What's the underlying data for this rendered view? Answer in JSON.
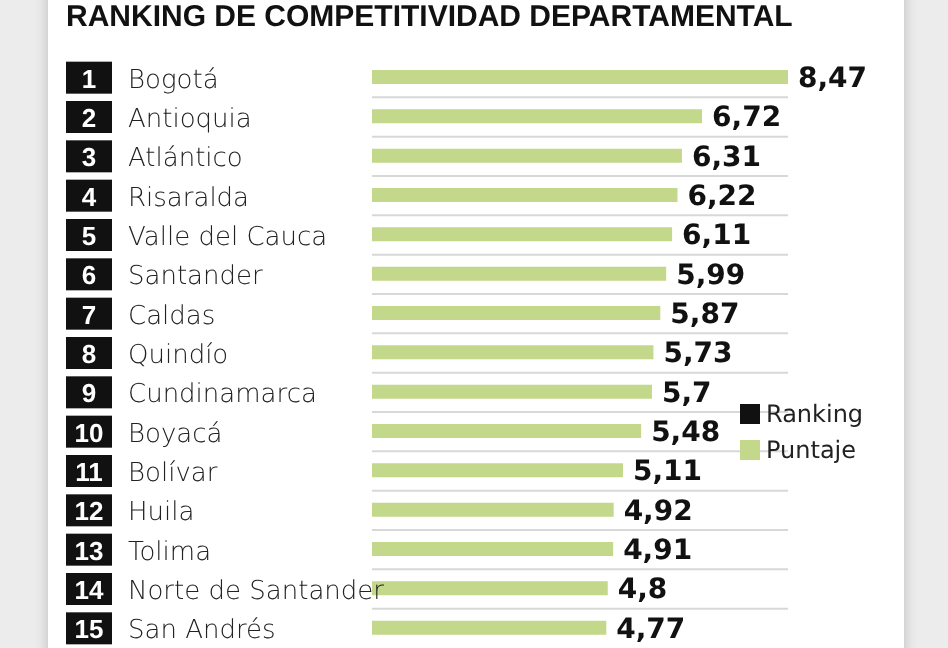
{
  "chart_data": {
    "type": "bar",
    "orientation": "horizontal",
    "title": "RANKING DE COMPETITIVIDAD DEPARTAMENTAL",
    "annotations": [
      "Ranking",
      "1",
      "2",
      "3",
      "4",
      "5",
      "6",
      "7",
      "8",
      "9",
      "10",
      "11",
      "12",
      "13",
      "14",
      "15"
    ],
    "categories": [
      "Bogotá",
      "Antioquia",
      "Atlántico",
      "Risaralda",
      "Valle del Cauca",
      "Santander",
      "Caldas",
      "Quindío",
      "Cundinamarca",
      "Boyacá",
      "Bolívar",
      "Huila",
      "Tolima",
      "Norte de Santander",
      "San Andrés"
    ],
    "series": [
      {
        "name": "Puntaje",
        "color": "#c3d88a",
        "values": [
          8.47,
          6.72,
          6.31,
          6.22,
          6.11,
          5.99,
          5.87,
          5.73,
          5.7,
          5.48,
          5.11,
          4.92,
          4.91,
          4.8,
          4.77
        ],
        "value_labels": [
          "8,47",
          "6,72",
          "6,31",
          "6,22",
          "6,11",
          "5,99",
          "5,87",
          "5,73",
          "5,7",
          "5,48",
          "5,11",
          "4,92",
          "4,91",
          "4,8",
          "4,77"
        ]
      }
    ],
    "grid": "y",
    "legend": "right"
  }
}
